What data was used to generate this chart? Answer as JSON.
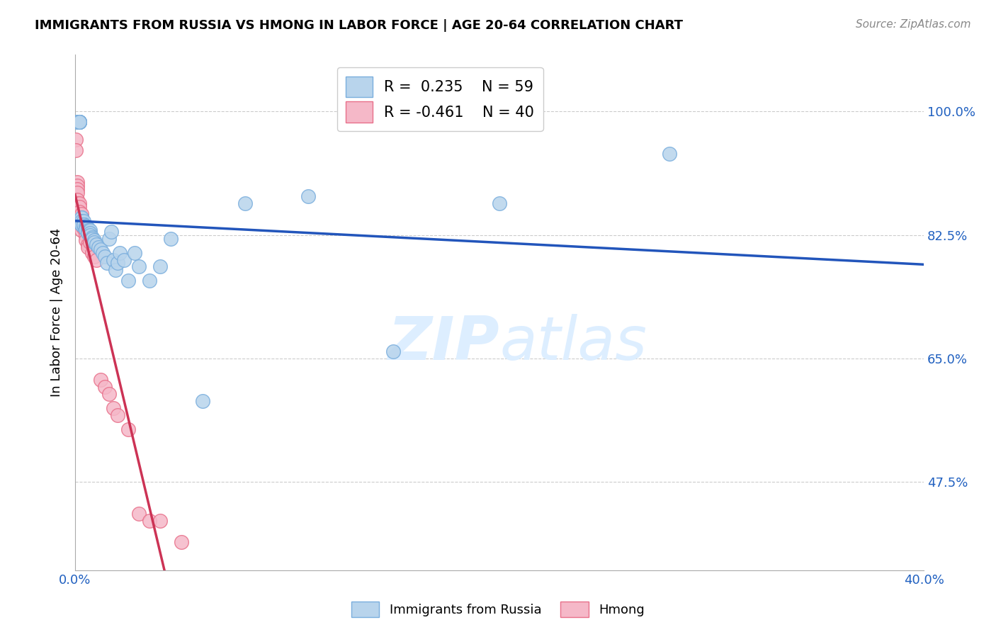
{
  "title": "IMMIGRANTS FROM RUSSIA VS HMONG IN LABOR FORCE | AGE 20-64 CORRELATION CHART",
  "source": "Source: ZipAtlas.com",
  "ylabel": "In Labor Force | Age 20-64",
  "yticks": [
    0.475,
    0.65,
    0.825,
    1.0
  ],
  "ytick_labels": [
    "47.5%",
    "65.0%",
    "82.5%",
    "100.0%"
  ],
  "russia_R": 0.235,
  "russia_N": 59,
  "hmong_R": -0.461,
  "hmong_N": 40,
  "russia_color": "#b8d4ec",
  "russia_edge_color": "#7aaedd",
  "hmong_color": "#f5b8c8",
  "hmong_edge_color": "#e8708a",
  "russia_line_color": "#2255bb",
  "hmong_line_color": "#cc3355",
  "hmong_line_dashed_color": "#e8b0c0",
  "watermark_color": "#ddeeff",
  "xmin": 0.0,
  "xmax": 0.4,
  "ymin": 0.35,
  "ymax": 1.08,
  "russia_x": [
    0.001,
    0.001,
    0.002,
    0.002,
    0.002,
    0.002,
    0.002,
    0.002,
    0.002,
    0.003,
    0.003,
    0.003,
    0.003,
    0.003,
    0.003,
    0.004,
    0.004,
    0.004,
    0.004,
    0.004,
    0.005,
    0.005,
    0.005,
    0.006,
    0.006,
    0.006,
    0.006,
    0.007,
    0.007,
    0.007,
    0.008,
    0.008,
    0.009,
    0.009,
    0.01,
    0.011,
    0.012,
    0.013,
    0.014,
    0.015,
    0.016,
    0.017,
    0.018,
    0.019,
    0.02,
    0.021,
    0.023,
    0.025,
    0.028,
    0.03,
    0.035,
    0.04,
    0.045,
    0.06,
    0.08,
    0.11,
    0.15,
    0.2,
    0.28
  ],
  "russia_y": [
    0.985,
    0.985,
    0.985,
    0.985,
    0.985,
    0.985,
    0.985,
    0.985,
    0.985,
    0.85,
    0.85,
    0.845,
    0.84,
    0.84,
    0.84,
    0.845,
    0.84,
    0.84,
    0.84,
    0.84,
    0.838,
    0.835,
    0.833,
    0.835,
    0.832,
    0.83,
    0.828,
    0.832,
    0.828,
    0.825,
    0.822,
    0.82,
    0.818,
    0.815,
    0.812,
    0.808,
    0.805,
    0.8,
    0.795,
    0.785,
    0.82,
    0.83,
    0.79,
    0.775,
    0.785,
    0.8,
    0.79,
    0.76,
    0.8,
    0.78,
    0.76,
    0.78,
    0.82,
    0.59,
    0.87,
    0.88,
    0.66,
    0.87,
    0.94
  ],
  "hmong_x": [
    0.0005,
    0.0005,
    0.001,
    0.001,
    0.001,
    0.001,
    0.001,
    0.001,
    0.001,
    0.002,
    0.002,
    0.002,
    0.002,
    0.002,
    0.002,
    0.003,
    0.003,
    0.003,
    0.003,
    0.003,
    0.004,
    0.004,
    0.005,
    0.005,
    0.006,
    0.006,
    0.007,
    0.008,
    0.009,
    0.01,
    0.012,
    0.014,
    0.016,
    0.018,
    0.02,
    0.025,
    0.03,
    0.035,
    0.04,
    0.05
  ],
  "hmong_y": [
    0.96,
    0.945,
    0.9,
    0.895,
    0.89,
    0.885,
    0.875,
    0.87,
    0.86,
    0.87,
    0.865,
    0.858,
    0.85,
    0.845,
    0.84,
    0.855,
    0.848,
    0.842,
    0.838,
    0.832,
    0.84,
    0.835,
    0.825,
    0.818,
    0.812,
    0.808,
    0.815,
    0.8,
    0.795,
    0.79,
    0.62,
    0.61,
    0.6,
    0.58,
    0.57,
    0.55,
    0.43,
    0.42,
    0.42,
    0.39
  ]
}
